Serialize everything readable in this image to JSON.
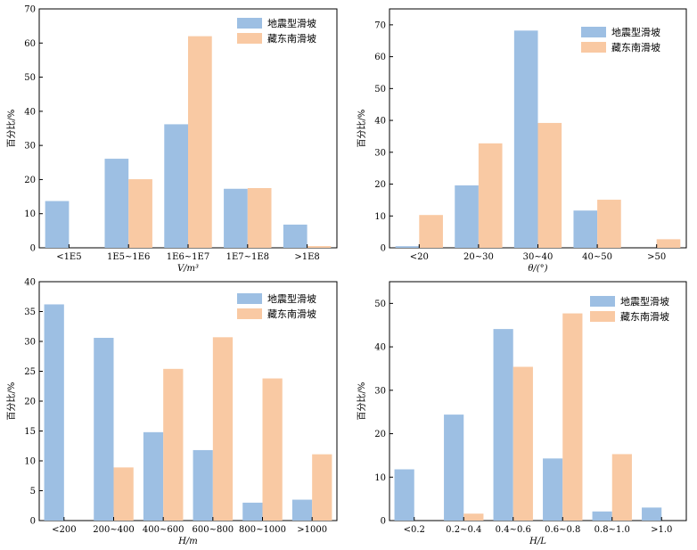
{
  "colors": {
    "series1": "#9dbfe3",
    "series2": "#f9c9a3"
  },
  "chart_data": [
    {
      "type": "bar",
      "ylim": [
        0,
        70
      ],
      "yticks": [
        0,
        10,
        20,
        30,
        40,
        50,
        60,
        70
      ],
      "categories": [
        "<1E5",
        "1E5~1E6",
        "1E6~1E7",
        "1E7~1E8",
        ">1E8"
      ],
      "xlabel": "V/m³",
      "ylabel": "百分比/%",
      "legend_position": "top-right",
      "series": [
        {
          "name": "地震型滑坡",
          "values": [
            13.7,
            26.1,
            36.2,
            17.3,
            6.8
          ]
        },
        {
          "name": "藏东南滑坡",
          "values": [
            0,
            20.1,
            62.0,
            17.5,
            0.5
          ]
        }
      ]
    },
    {
      "type": "bar",
      "ylim": [
        0,
        75
      ],
      "yticks": [
        0,
        10,
        20,
        30,
        40,
        50,
        60,
        70
      ],
      "categories": [
        "<20",
        "20~30",
        "30~40",
        "40~50",
        ">50"
      ],
      "xlabel": "θ/(°)",
      "ylabel": "百分比/%",
      "legend_position": "top-right",
      "series": [
        {
          "name": "地震型滑坡",
          "values": [
            0.5,
            19.6,
            68.2,
            11.7,
            0
          ]
        },
        {
          "name": "藏东南滑坡",
          "values": [
            10.3,
            32.8,
            39.2,
            15.1,
            2.7
          ]
        }
      ]
    },
    {
      "type": "bar",
      "ylim": [
        0,
        40
      ],
      "yticks": [
        0,
        5,
        10,
        15,
        20,
        25,
        30,
        35,
        40
      ],
      "categories": [
        "<200",
        "200~400",
        "400~600",
        "600~800",
        "800~1000",
        ">1000"
      ],
      "xlabel": "H/m",
      "ylabel": "百分比/%",
      "legend_position": "top-right",
      "series": [
        {
          "name": "地震型滑坡",
          "values": [
            36.2,
            30.6,
            14.8,
            11.8,
            3.0,
            3.5
          ]
        },
        {
          "name": "藏东南滑坡",
          "values": [
            0,
            8.9,
            25.4,
            30.7,
            23.8,
            11.1
          ]
        }
      ]
    },
    {
      "type": "bar",
      "ylim": [
        0,
        55
      ],
      "yticks": [
        0,
        10,
        20,
        30,
        40,
        50
      ],
      "categories": [
        "<0.2",
        "0.2~0.4",
        "0.4~0.6",
        "0.6~0.8",
        "0.8~1.0",
        ">1.0"
      ],
      "xlabel": "H/L",
      "ylabel": "百分比/%",
      "legend_position": "top-right",
      "series": [
        {
          "name": "地震型滑坡",
          "values": [
            11.8,
            24.4,
            44.1,
            14.3,
            2.1,
            3.0
          ]
        },
        {
          "name": "藏东南滑坡",
          "values": [
            0,
            1.6,
            35.4,
            47.7,
            15.3,
            0
          ]
        }
      ]
    }
  ]
}
